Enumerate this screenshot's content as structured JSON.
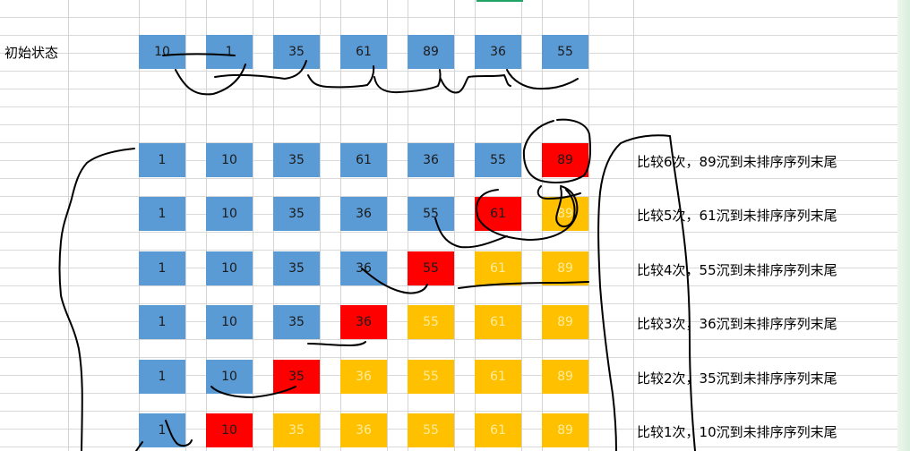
{
  "sheet": {
    "row_label": "初始状态",
    "accent": "#21a366"
  },
  "colors": {
    "unsorted": "#5b9bd5",
    "current": "#ff0000",
    "sorted": "#ffc000"
  },
  "initial": [
    "10",
    "1",
    "35",
    "61",
    "89",
    "36",
    "55"
  ],
  "passes": [
    {
      "cells": [
        "1",
        "10",
        "35",
        "61",
        "36",
        "55",
        "89"
      ],
      "states": [
        "b",
        "b",
        "b",
        "b",
        "b",
        "b",
        "r"
      ],
      "desc": "比较6次，89沉到未排序序列末尾"
    },
    {
      "cells": [
        "1",
        "10",
        "35",
        "36",
        "55",
        "61",
        "89"
      ],
      "states": [
        "b",
        "b",
        "b",
        "b",
        "b",
        "r",
        "y"
      ],
      "desc": "比较5次，61沉到未排序序列末尾"
    },
    {
      "cells": [
        "1",
        "10",
        "35",
        "36",
        "55",
        "61",
        "89"
      ],
      "states": [
        "b",
        "b",
        "b",
        "b",
        "r",
        "y",
        "y"
      ],
      "desc": "比较4次，55沉到未排序序列末尾"
    },
    {
      "cells": [
        "1",
        "10",
        "35",
        "36",
        "55",
        "61",
        "89"
      ],
      "states": [
        "b",
        "b",
        "b",
        "r",
        "y",
        "y",
        "y"
      ],
      "desc": "比较3次，36沉到未排序序列末尾"
    },
    {
      "cells": [
        "1",
        "10",
        "35",
        "36",
        "55",
        "61",
        "89"
      ],
      "states": [
        "b",
        "b",
        "r",
        "y",
        "y",
        "y",
        "y"
      ],
      "desc": "比较2次，35沉到未排序序列末尾"
    },
    {
      "cells": [
        "1",
        "10",
        "35",
        "36",
        "55",
        "61",
        "89"
      ],
      "states": [
        "b",
        "r",
        "y",
        "y",
        "y",
        "y",
        "y"
      ],
      "desc": "比较1次，10沉到未排序序列末尾"
    }
  ]
}
